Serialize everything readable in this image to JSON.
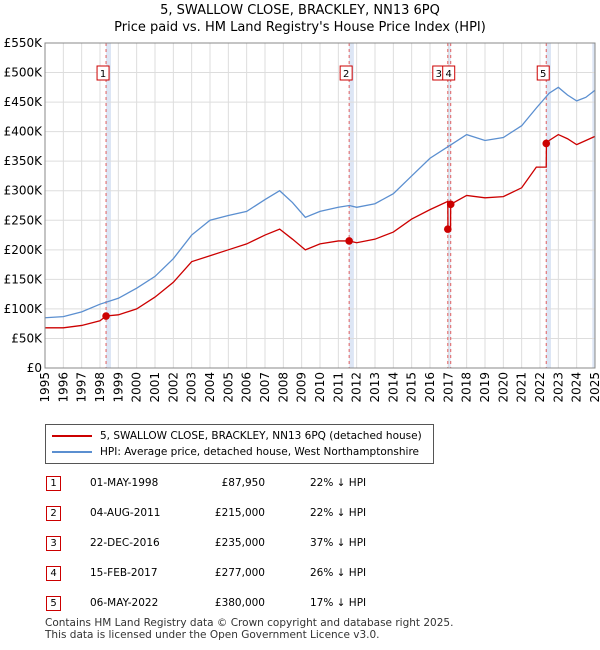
{
  "chart_data": {
    "type": "line",
    "title": "5, SWALLOW CLOSE, BRACKLEY, NN13 6PQ",
    "subtitle": "Price paid vs. HM Land Registry's House Price Index (HPI)",
    "xlim": [
      1995,
      2025
    ],
    "ylim": [
      0,
      550000
    ],
    "y_ticks": [
      0,
      50000,
      100000,
      150000,
      200000,
      250000,
      300000,
      350000,
      400000,
      450000,
      500000,
      550000
    ],
    "y_tick_labels": [
      "£0",
      "£50K",
      "£100K",
      "£150K",
      "£200K",
      "£250K",
      "£300K",
      "£350K",
      "£400K",
      "£450K",
      "£500K",
      "£550K"
    ],
    "x_ticks": [
      1995,
      1996,
      1997,
      1998,
      1999,
      2000,
      2001,
      2002,
      2003,
      2004,
      2005,
      2006,
      2007,
      2008,
      2009,
      2010,
      2011,
      2012,
      2013,
      2014,
      2015,
      2016,
      2017,
      2018,
      2019,
      2020,
      2021,
      2022,
      2023,
      2024,
      2025
    ],
    "x_tick_labels": [
      "1995",
      "1996",
      "1997",
      "1998",
      "1999",
      "2000",
      "2001",
      "2002",
      "2003",
      "2004",
      "2005",
      "2006",
      "2007",
      "2008",
      "2009",
      "2010",
      "2011",
      "2012",
      "2013",
      "2014",
      "2015",
      "2016",
      "2017",
      "2018",
      "2019",
      "2020",
      "2021",
      "2022",
      "2023",
      "2024",
      "2025"
    ],
    "grid": true,
    "series": [
      {
        "name": "5, SWALLOW CLOSE, BRACKLEY, NN13 6PQ (detached house)",
        "color": "#cc0000",
        "x": [
          1995.0,
          1996.0,
          1997.0,
          1998.0,
          1998.33,
          1999.0,
          2000.0,
          2001.0,
          2002.0,
          2003.0,
          2004.0,
          2005.0,
          2006.0,
          2007.0,
          2007.8,
          2008.5,
          2009.2,
          2010.0,
          2011.0,
          2011.59,
          2012.0,
          2013.0,
          2014.0,
          2015.0,
          2016.0,
          2016.97,
          2016.98,
          2017.12,
          2017.13,
          2018.0,
          2019.0,
          2020.0,
          2021.0,
          2021.8,
          2022.34,
          2022.35,
          2022.5,
          2023.0,
          2023.5,
          2024.0,
          2024.5,
          2025.0
        ],
        "y": [
          68000,
          68000,
          72000,
          80000,
          87950,
          90000,
          100000,
          120000,
          145000,
          180000,
          190000,
          200000,
          210000,
          225000,
          235000,
          218000,
          200000,
          210000,
          215000,
          215000,
          212000,
          218000,
          230000,
          252000,
          268000,
          282000,
          235000,
          235000,
          277000,
          292000,
          288000,
          290000,
          305000,
          340000,
          340000,
          380000,
          385000,
          395000,
          388000,
          378000,
          385000,
          392000
        ]
      },
      {
        "name": "HPI: Average price, detached house, West Northamptonshire",
        "color": "#5b8fd0",
        "x": [
          1995.0,
          1996.0,
          1997.0,
          1998.0,
          1999.0,
          2000.0,
          2001.0,
          2002.0,
          2003.0,
          2004.0,
          2005.0,
          2006.0,
          2007.0,
          2007.8,
          2008.5,
          2009.2,
          2010.0,
          2011.0,
          2011.6,
          2012.0,
          2013.0,
          2014.0,
          2015.0,
          2016.0,
          2017.0,
          2018.0,
          2019.0,
          2020.0,
          2021.0,
          2021.8,
          2022.5,
          2023.0,
          2023.5,
          2024.0,
          2024.5,
          2025.0
        ],
        "y": [
          85000,
          87000,
          95000,
          108000,
          118000,
          135000,
          155000,
          185000,
          225000,
          250000,
          258000,
          265000,
          285000,
          300000,
          280000,
          255000,
          265000,
          272000,
          275000,
          272000,
          278000,
          295000,
          325000,
          355000,
          375000,
          395000,
          385000,
          390000,
          410000,
          440000,
          465000,
          475000,
          462000,
          452000,
          458000,
          470000
        ]
      }
    ],
    "sales": [
      {
        "label": "1",
        "x": 1998.33,
        "y": 87950
      },
      {
        "label": "2",
        "x": 2011.59,
        "y": 215000
      },
      {
        "label": "3",
        "x": 2016.97,
        "y": 235000
      },
      {
        "label": "4",
        "x": 2017.13,
        "y": 277000
      },
      {
        "label": "5",
        "x": 2022.34,
        "y": 380000
      }
    ],
    "highlight_bands": [
      {
        "x0": 1998.33,
        "x1": 1998.6
      },
      {
        "x0": 2011.59,
        "x1": 2011.85
      },
      {
        "x0": 2016.97,
        "x1": 2017.13
      },
      {
        "x0": 2022.34,
        "x1": 2022.6
      },
      {
        "x0": 2024.85,
        "x1": 2025.0
      }
    ],
    "legend_position": "below"
  },
  "header": {
    "title": "5, SWALLOW CLOSE, BRACKLEY, NN13 6PQ",
    "subtitle": "Price paid vs. HM Land Registry's House Price Index (HPI)"
  },
  "legend": {
    "items": [
      {
        "label": "5, SWALLOW CLOSE, BRACKLEY, NN13 6PQ (detached house)",
        "color": "#cc0000"
      },
      {
        "label": "HPI: Average price, detached house, West Northamptonshire",
        "color": "#5b8fd0"
      }
    ]
  },
  "transactions": [
    {
      "num": "1",
      "date": "01-MAY-1998",
      "price": "£87,950",
      "hpi": "22% ↓ HPI"
    },
    {
      "num": "2",
      "date": "04-AUG-2011",
      "price": "£215,000",
      "hpi": "22% ↓ HPI"
    },
    {
      "num": "3",
      "date": "22-DEC-2016",
      "price": "£235,000",
      "hpi": "37% ↓ HPI"
    },
    {
      "num": "4",
      "date": "15-FEB-2017",
      "price": "£277,000",
      "hpi": "26% ↓ HPI"
    },
    {
      "num": "5",
      "date": "06-MAY-2022",
      "price": "£380,000",
      "hpi": "17% ↓ HPI"
    }
  ],
  "footer": {
    "line1": "Contains HM Land Registry data © Crown copyright and database right 2025.",
    "line2": "This data is licensed under the Open Government Licence v3.0."
  }
}
